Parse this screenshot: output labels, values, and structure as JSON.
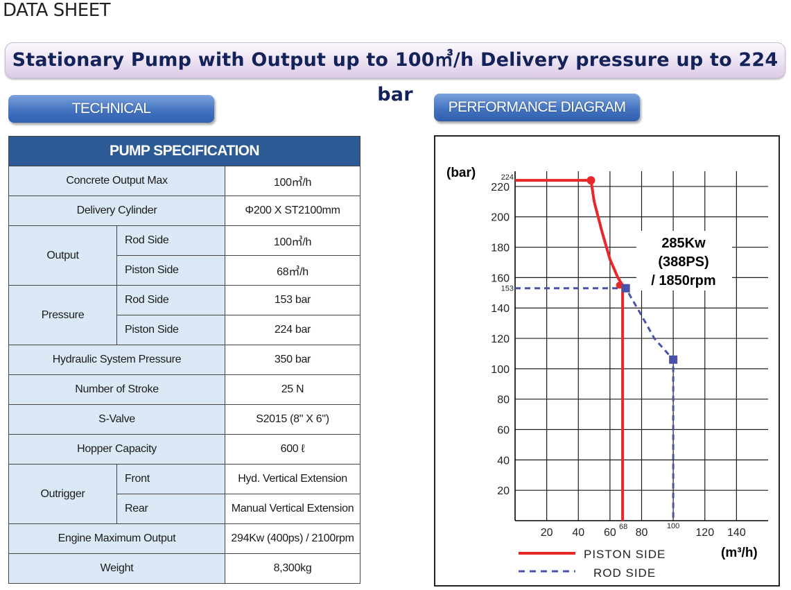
{
  "page": {
    "title": "DATA SHEET",
    "banner": "Stationary Pump with Output up to 100㎥/h Delivery pressure up to 224 bar"
  },
  "sections": {
    "technical": "TECHNICAL",
    "performance": "PERFORMANCE DIAGRAM"
  },
  "spec": {
    "header": "PUMP SPECIFICATION",
    "concrete_output_max": {
      "label": "Concrete Output Max",
      "value": "100㎥/h"
    },
    "delivery_cylinder": {
      "label": "Delivery Cylinder",
      "value": "Φ200 X ST2100mm"
    },
    "output": {
      "label": "Output",
      "rod_label": "Rod Side",
      "rod_value": "100㎥/h",
      "piston_label": "Piston Side",
      "piston_value": "68㎥/h"
    },
    "pressure": {
      "label": "Pressure",
      "rod_label": "Rod Side",
      "rod_value": "153 bar",
      "piston_label": "Piston Side",
      "piston_value": "224 bar"
    },
    "hydraulic": {
      "label": "Hydraulic System Pressure",
      "value": "350 bar"
    },
    "strokes": {
      "label": "Number of Stroke",
      "value": "25 N"
    },
    "svalve": {
      "label": "S-Valve",
      "value": "S2015 (8\" X 6\")"
    },
    "hopper": {
      "label": "Hopper Capacity",
      "value": "600 ℓ"
    },
    "outrigger": {
      "label": "Outrigger",
      "front_label": "Front",
      "front_value": "Hyd. Vertical Extension",
      "rear_label": "Rear",
      "rear_value": "Manual Vertical Extension"
    },
    "engine": {
      "label": "Engine Maximum Output",
      "value": "294Kw (400ps) / 2100rpm"
    },
    "weight": {
      "label": "Weight",
      "value": "8,300kg"
    }
  },
  "chart_data": {
    "type": "line",
    "ylabel": "(bar)",
    "xlabel": "(m³/h)",
    "xlim": [
      0,
      160
    ],
    "ylim": [
      0,
      230
    ],
    "x_ticks": [
      20,
      40,
      60,
      80,
      120,
      140
    ],
    "y_ticks": [
      20,
      40,
      60,
      80,
      100,
      120,
      140,
      160,
      180,
      200,
      220
    ],
    "grid": true,
    "legend_position": "bottom",
    "annotation": [
      "285Kw",
      "(388PS)",
      "/ 1850rpm"
    ],
    "marker_labels": {
      "y_224": "224",
      "y_153": "153",
      "x_68": "68",
      "x_100": "100"
    },
    "series": [
      {
        "name": "PISTON SIDE",
        "color": "#e8272a",
        "style": "solid",
        "x": [
          0,
          48,
          50,
          55,
          60,
          65,
          68,
          68
        ],
        "y": [
          224,
          224,
          210,
          190,
          172,
          160,
          155,
          0
        ]
      },
      {
        "name": "ROD SIDE",
        "color": "#4852a8",
        "style": "dashed",
        "x": [
          0,
          70,
          80,
          88,
          100,
          100
        ],
        "y": [
          153,
          153,
          135,
          120,
          106,
          0
        ]
      }
    ]
  }
}
